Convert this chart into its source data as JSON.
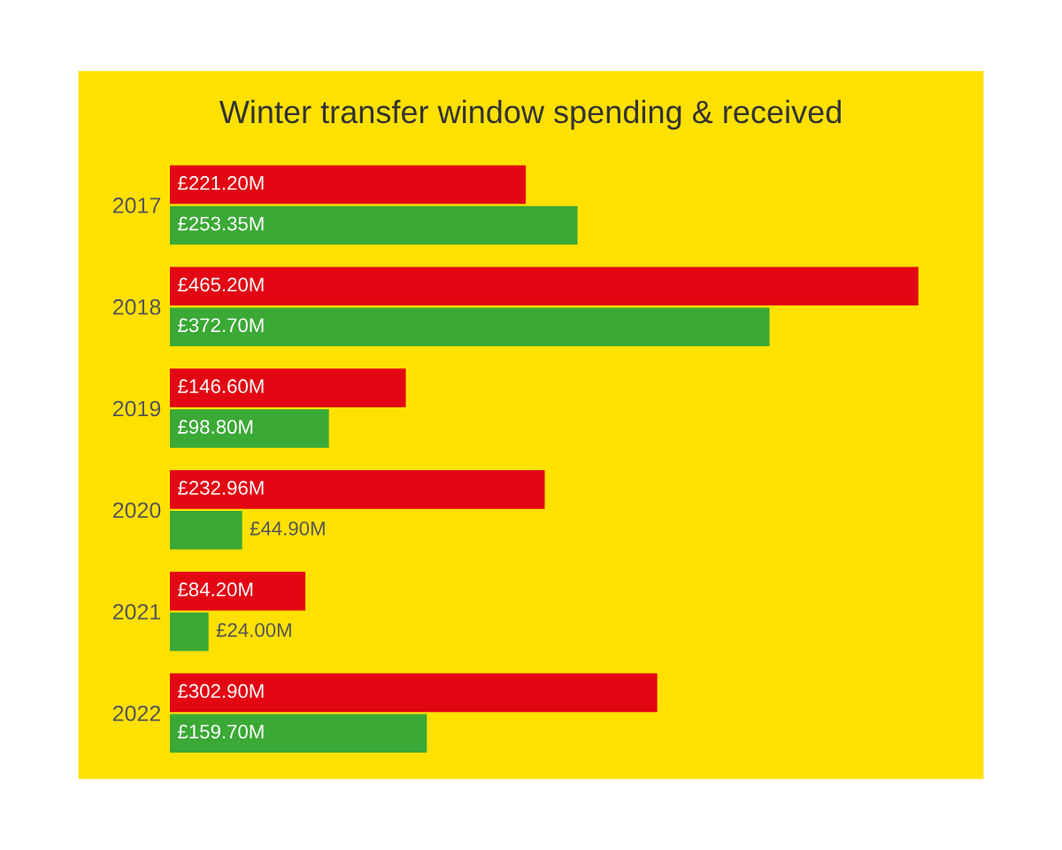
{
  "chart_data": {
    "type": "bar",
    "orientation": "horizontal",
    "title": "Winter transfer window spending & received",
    "categories": [
      "2017",
      "2018",
      "2019",
      "2020",
      "2021",
      "2022"
    ],
    "series": [
      {
        "color": "#e30613",
        "values": [
          221.2,
          465.2,
          146.6,
          232.96,
          84.2,
          302.9
        ],
        "value_labels": [
          "£221.20M",
          "£465.20M",
          "£146.60M",
          "£232.96M",
          "£84.20M",
          "£302.90M"
        ]
      },
      {
        "color": "#3aa935",
        "values": [
          253.35,
          372.7,
          98.8,
          44.9,
          24.0,
          159.7
        ],
        "value_labels": [
          "£253.35M",
          "£372.70M",
          "£98.80M",
          "£44.90M",
          "£24.00M",
          "£159.70M"
        ]
      }
    ],
    "grid": false,
    "legend": false
  }
}
